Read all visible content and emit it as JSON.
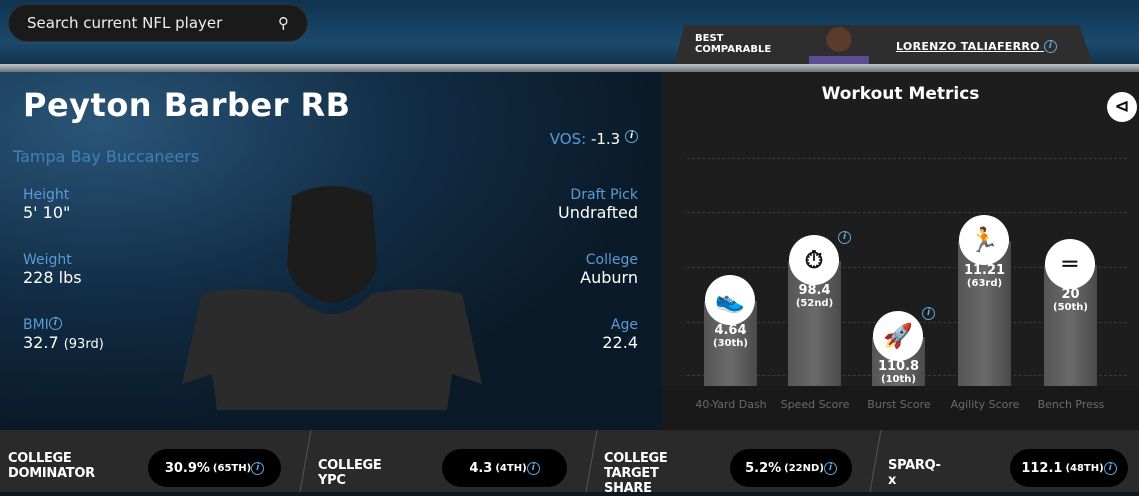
{
  "search": {
    "placeholder": "Search current NFL player",
    "icon": "search-icon"
  },
  "comparable": {
    "label": "BEST COMPARABLE",
    "name": "LORENZO TALIAFERRO"
  },
  "player": {
    "title": "Peyton Barber RB",
    "team": "Tampa Bay Buccaneers",
    "vos_label": "VOS:",
    "vos": "-1.3",
    "height_label": "Height",
    "height": "5' 10\"",
    "weight_label": "Weight",
    "weight": "228 lbs",
    "bmi_label": "BMI",
    "bmi": "32.7",
    "bmi_rank": "(93rd)",
    "draft_label": "Draft Pick",
    "draft": "Undrafted",
    "college_label": "College",
    "college": "Auburn",
    "age_label": "Age",
    "age": "22.4"
  },
  "workout": {
    "title": "Workout Metrics",
    "metrics": [
      {
        "label": "40-Yard Dash",
        "value": "4.64",
        "rank": "(30th)",
        "percentile": 30,
        "icon": "shoe-icon"
      },
      {
        "label": "Speed Score",
        "value": "98.4",
        "rank": "(52nd)",
        "percentile": 52,
        "icon": "stopwatch-icon"
      },
      {
        "label": "Burst Score",
        "value": "110.8",
        "rank": "(10th)",
        "percentile": 10,
        "icon": "rocket-icon"
      },
      {
        "label": "Agility Score",
        "value": "11.21",
        "rank": "(63rd)",
        "percentile": 63,
        "icon": "runner-icon"
      },
      {
        "label": "Bench Press",
        "value": "20",
        "rank": "(50th)",
        "percentile": 50,
        "icon": "barbell-icon"
      }
    ]
  },
  "stats": [
    {
      "label1": "COLLEGE",
      "label2": "DOMINATOR",
      "value": "30.9%",
      "rank": "(65TH)"
    },
    {
      "label1": "COLLEGE YPC",
      "label2": "",
      "value": "4.3",
      "rank": "(4TH)"
    },
    {
      "label1": "COLLEGE",
      "label2": "TARGET SHARE",
      "value": "5.2%",
      "rank": "(22ND)"
    },
    {
      "label1": "SPARQ-x",
      "label2": "",
      "value": "112.1",
      "rank": "(48TH)"
    }
  ]
}
